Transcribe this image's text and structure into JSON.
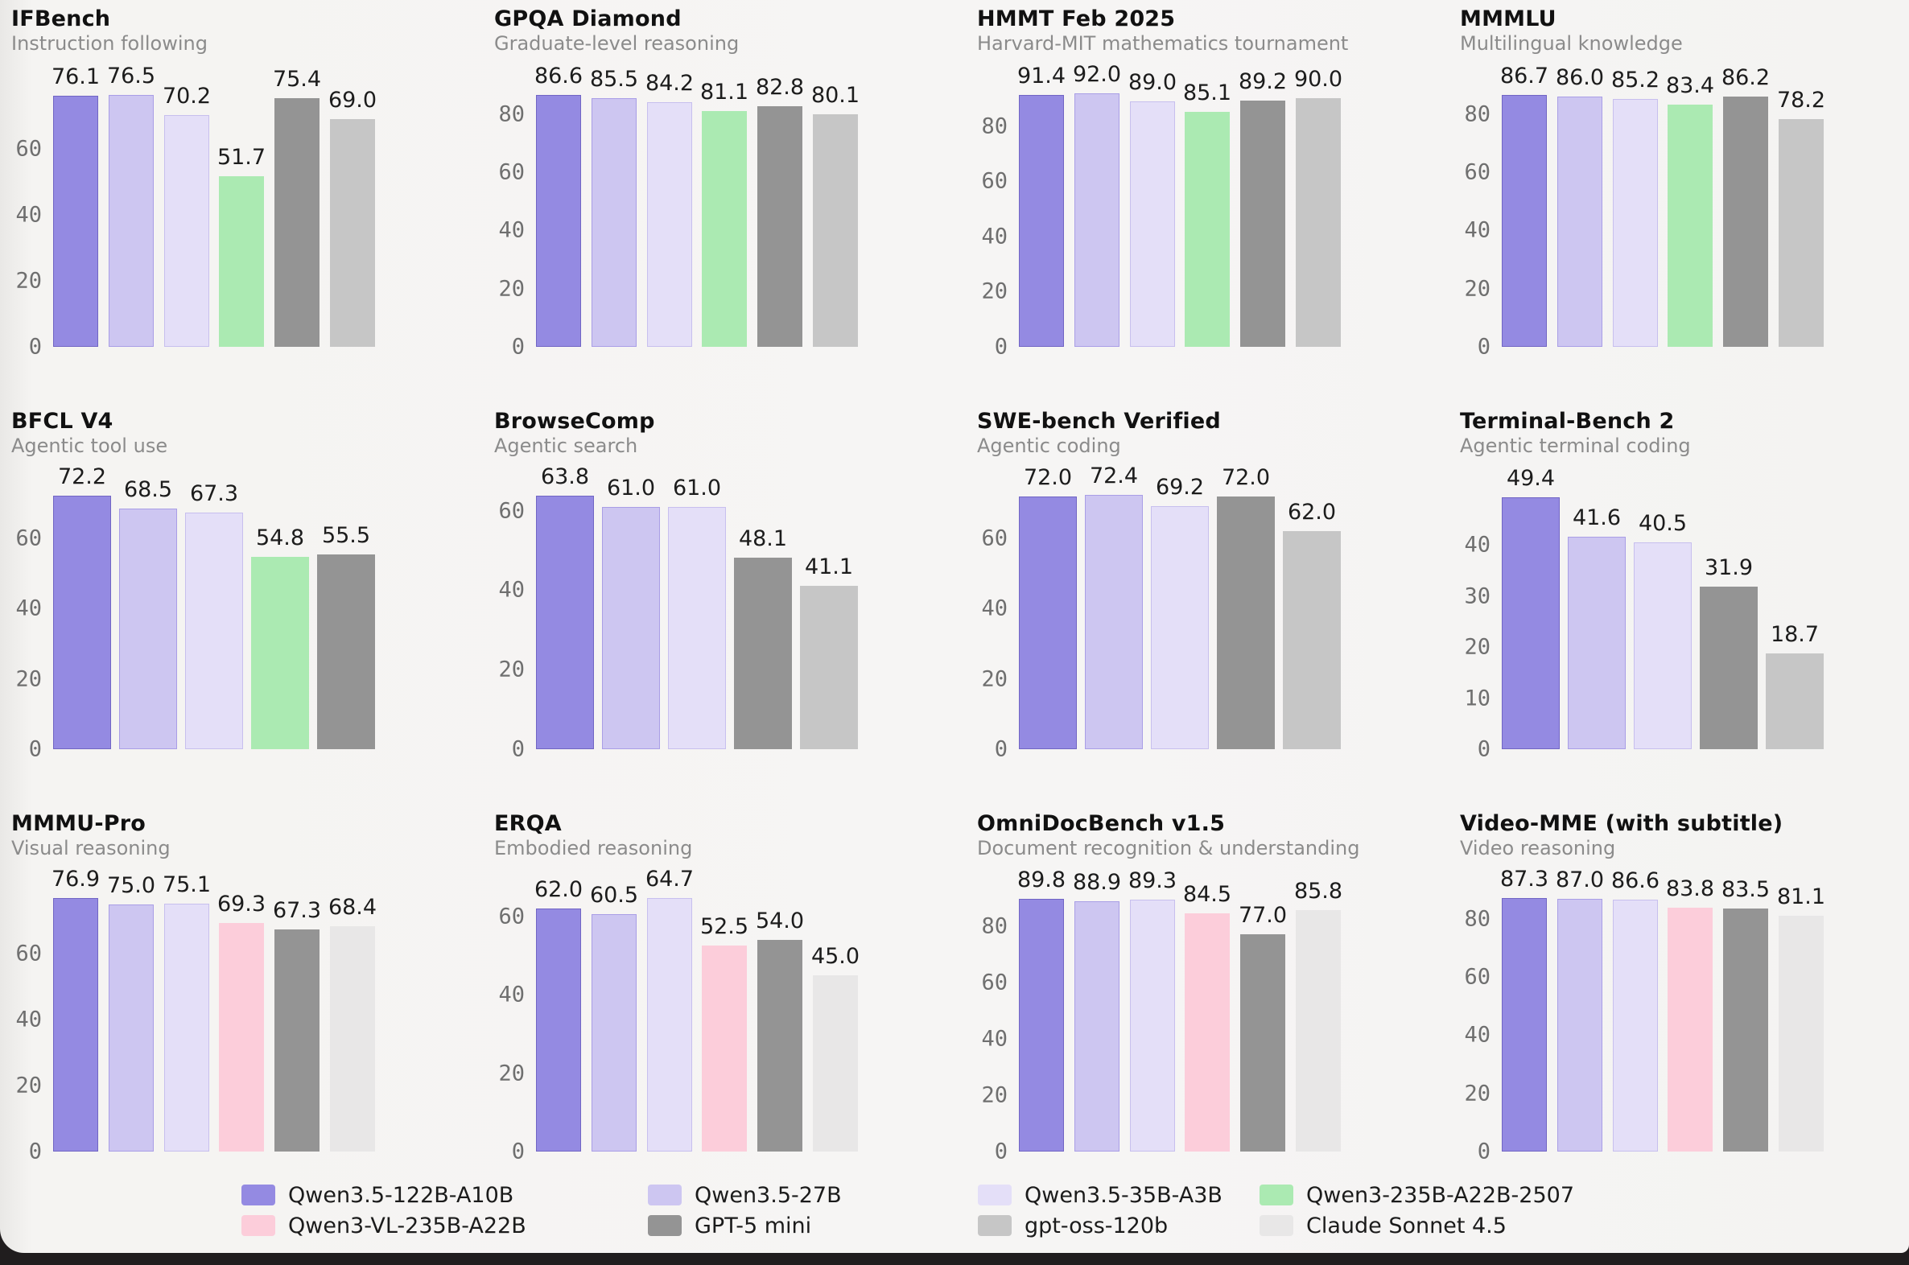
{
  "page": {
    "surface_background": "#f6f5f4",
    "bottom_bar_color": "#201d1e"
  },
  "palette": {
    "qwen35_122b": {
      "label": "Qwen3.5-122B-A10B",
      "fill": "#948ae2",
      "border": "#7165c4"
    },
    "qwen35_27b": {
      "label": "Qwen3.5-27B",
      "fill": "#cdc6f1",
      "border": "#a99ee6"
    },
    "qwen35_35b": {
      "label": "Qwen3.5-35B-A3B",
      "fill": "#e4dff8",
      "border": "#c7bfee"
    },
    "qwen3_235b": {
      "label": "Qwen3-235B-A22B-2507",
      "fill": "#abeab2",
      "border": "#abeab2"
    },
    "qwen3_vl": {
      "label": "Qwen3-VL-235B-A22B",
      "fill": "#fccdda",
      "border": "#fccdda"
    },
    "gpt5_mini": {
      "label": "GPT-5 mini",
      "fill": "#949494",
      "border": "#949494"
    },
    "gpt_oss": {
      "label": "gpt-oss-120b",
      "fill": "#c6c6c6",
      "border": "#c6c6c6"
    },
    "claude": {
      "label": "Claude Sonnet 4.5",
      "fill": "#e8e7e7",
      "border": "#e8e7e7"
    }
  },
  "legend": {
    "rows": [
      [
        "qwen35_122b",
        "qwen35_27b",
        "qwen35_35b",
        "qwen3_235b"
      ],
      [
        "qwen3_vl",
        "gpt5_mini",
        "gpt_oss",
        "claude"
      ]
    ]
  },
  "chart_data": [
    {
      "type": "bar",
      "title": "IFBench",
      "subtitle": "Instruction following",
      "categories": [
        "Qwen3.5-122B-A10B",
        "Qwen3.5-27B",
        "Qwen3.5-35B-A3B",
        "Qwen3-235B-A22B-2507",
        "GPT-5 mini",
        "gpt-oss-120b"
      ],
      "series_keys": [
        "qwen35_122b",
        "qwen35_27b",
        "qwen35_35b",
        "qwen3_235b",
        "gpt5_mini",
        "gpt_oss"
      ],
      "values": [
        76.1,
        76.5,
        70.2,
        51.7,
        75.4,
        69.0
      ],
      "yticks": [
        0,
        20,
        40,
        60
      ],
      "ylim": [
        0,
        82
      ],
      "grid": false,
      "legend_position": "bottom-figure"
    },
    {
      "type": "bar",
      "title": "GPQA Diamond",
      "subtitle": "Graduate-level reasoning",
      "categories": [
        "Qwen3.5-122B-A10B",
        "Qwen3.5-27B",
        "Qwen3.5-35B-A3B",
        "Qwen3-235B-A22B-2507",
        "GPT-5 mini",
        "gpt-oss-120b"
      ],
      "series_keys": [
        "qwen35_122b",
        "qwen35_27b",
        "qwen35_35b",
        "qwen3_235b",
        "gpt5_mini",
        "gpt_oss"
      ],
      "values": [
        86.6,
        85.5,
        84.2,
        81.1,
        82.8,
        80.1
      ],
      "yticks": [
        0,
        20,
        40,
        60,
        80
      ],
      "ylim": [
        0,
        93
      ],
      "grid": false
    },
    {
      "type": "bar",
      "title": "HMMT Feb 2025",
      "subtitle": "Harvard-MIT mathematics tournament",
      "categories": [
        "Qwen3.5-122B-A10B",
        "Qwen3.5-27B",
        "Qwen3.5-35B-A3B",
        "Qwen3-235B-A22B-2507",
        "GPT-5 mini",
        "gpt-oss-120b"
      ],
      "series_keys": [
        "qwen35_122b",
        "qwen35_27b",
        "qwen35_35b",
        "qwen3_235b",
        "gpt5_mini",
        "gpt_oss"
      ],
      "values": [
        91.4,
        92.0,
        89.0,
        85.1,
        89.2,
        90.0
      ],
      "yticks": [
        0,
        20,
        40,
        60,
        80
      ],
      "ylim": [
        0,
        98
      ],
      "grid": false
    },
    {
      "type": "bar",
      "title": "MMMLU",
      "subtitle": "Multilingual knowledge",
      "categories": [
        "Qwen3.5-122B-A10B",
        "Qwen3.5-27B",
        "Qwen3.5-35B-A3B",
        "Qwen3-235B-A22B-2507",
        "GPT-5 mini",
        "gpt-oss-120b"
      ],
      "series_keys": [
        "qwen35_122b",
        "qwen35_27b",
        "qwen35_35b",
        "qwen3_235b",
        "gpt5_mini",
        "gpt_oss"
      ],
      "values": [
        86.7,
        86.0,
        85.2,
        83.4,
        86.2,
        78.2
      ],
      "yticks": [
        0,
        20,
        40,
        60,
        80
      ],
      "ylim": [
        0,
        93
      ],
      "grid": false
    },
    {
      "type": "bar",
      "title": "BFCL V4",
      "subtitle": "Agentic tool use",
      "categories": [
        "Qwen3.5-122B-A10B",
        "Qwen3.5-27B",
        "Qwen3.5-35B-A3B",
        "Qwen3-235B-A22B-2507",
        "GPT-5 mini"
      ],
      "series_keys": [
        "qwen35_122b",
        "qwen35_27b",
        "qwen35_35b",
        "qwen3_235b",
        "gpt5_mini"
      ],
      "values": [
        72.2,
        68.5,
        67.3,
        54.8,
        55.5
      ],
      "yticks": [
        0,
        20,
        40,
        60
      ],
      "ylim": [
        0,
        77
      ],
      "grid": false
    },
    {
      "type": "bar",
      "title": "BrowseComp",
      "subtitle": "Agentic search",
      "categories": [
        "Qwen3.5-122B-A10B",
        "Qwen3.5-27B",
        "Qwen3.5-35B-A3B",
        "GPT-5 mini",
        "gpt-oss-120b"
      ],
      "series_keys": [
        "qwen35_122b",
        "qwen35_27b",
        "qwen35_35b",
        "gpt5_mini",
        "gpt_oss"
      ],
      "values": [
        63.8,
        61.0,
        61.0,
        48.1,
        41.1
      ],
      "yticks": [
        0,
        20,
        40,
        60
      ],
      "ylim": [
        0,
        68
      ],
      "grid": false
    },
    {
      "type": "bar",
      "title": "SWE-bench Verified",
      "subtitle": "Agentic coding",
      "categories": [
        "Qwen3.5-122B-A10B",
        "Qwen3.5-27B",
        "Qwen3.5-35B-A3B",
        "GPT-5 mini",
        "gpt-oss-120b"
      ],
      "series_keys": [
        "qwen35_122b",
        "qwen35_27b",
        "qwen35_35b",
        "gpt5_mini",
        "gpt_oss"
      ],
      "values": [
        72.0,
        72.4,
        69.2,
        72.0,
        62.0
      ],
      "yticks": [
        0,
        20,
        40,
        60
      ],
      "ylim": [
        0,
        77
      ],
      "grid": false
    },
    {
      "type": "bar",
      "title": "Terminal-Bench 2",
      "subtitle": "Agentic terminal coding",
      "categories": [
        "Qwen3.5-122B-A10B",
        "Qwen3.5-27B",
        "Qwen3.5-35B-A3B",
        "GPT-5 mini",
        "gpt-oss-120b"
      ],
      "series_keys": [
        "qwen35_122b",
        "qwen35_27b",
        "qwen35_35b",
        "gpt5_mini",
        "gpt_oss"
      ],
      "values": [
        49.4,
        41.6,
        40.5,
        31.9,
        18.7
      ],
      "yticks": [
        0,
        10,
        20,
        30,
        40
      ],
      "ylim": [
        0,
        53
      ],
      "grid": false
    },
    {
      "type": "bar",
      "title": "MMMU-Pro",
      "subtitle": "Visual reasoning",
      "categories": [
        "Qwen3.5-122B-A10B",
        "Qwen3.5-27B",
        "Qwen3.5-35B-A3B",
        "Qwen3-VL-235B-A22B",
        "GPT-5 mini",
        "Claude Sonnet 4.5"
      ],
      "series_keys": [
        "qwen35_122b",
        "qwen35_27b",
        "qwen35_35b",
        "qwen3_vl",
        "gpt5_mini",
        "claude"
      ],
      "values": [
        76.9,
        75.0,
        75.1,
        69.3,
        67.3,
        68.4
      ],
      "yticks": [
        0,
        20,
        40,
        60
      ],
      "ylim": [
        0,
        82
      ],
      "grid": false
    },
    {
      "type": "bar",
      "title": "ERQA",
      "subtitle": "Embodied reasoning",
      "categories": [
        "Qwen3.5-122B-A10B",
        "Qwen3.5-27B",
        "Qwen3.5-35B-A3B",
        "Qwen3-VL-235B-A22B",
        "GPT-5 mini",
        "Claude Sonnet 4.5"
      ],
      "series_keys": [
        "qwen35_122b",
        "qwen35_27b",
        "qwen35_35b",
        "qwen3_vl",
        "gpt5_mini",
        "claude"
      ],
      "values": [
        62.0,
        60.5,
        64.7,
        52.5,
        54.0,
        45.0
      ],
      "yticks": [
        0,
        20,
        40,
        60
      ],
      "ylim": [
        0,
        69
      ],
      "grid": false
    },
    {
      "type": "bar",
      "title": "OmniDocBench v1.5",
      "subtitle": "Document recognition & understanding",
      "categories": [
        "Qwen3.5-122B-A10B",
        "Qwen3.5-27B",
        "Qwen3.5-35B-A3B",
        "Qwen3-VL-235B-A22B",
        "GPT-5 mini",
        "Claude Sonnet 4.5"
      ],
      "series_keys": [
        "qwen35_122b",
        "qwen35_27b",
        "qwen35_35b",
        "qwen3_vl",
        "gpt5_mini",
        "claude"
      ],
      "values": [
        89.8,
        88.9,
        89.3,
        84.5,
        77.0,
        85.8
      ],
      "yticks": [
        0,
        20,
        40,
        60,
        80
      ],
      "ylim": [
        0,
        96
      ],
      "grid": false
    },
    {
      "type": "bar",
      "title": "Video-MME (with subtitle)",
      "subtitle": "Video reasoning",
      "categories": [
        "Qwen3.5-122B-A10B",
        "Qwen3.5-27B",
        "Qwen3.5-35B-A3B",
        "Qwen3-VL-235B-A22B",
        "GPT-5 mini",
        "Claude Sonnet 4.5"
      ],
      "series_keys": [
        "qwen35_122b",
        "qwen35_27b",
        "qwen35_35b",
        "qwen3_vl",
        "gpt5_mini",
        "claude"
      ],
      "values": [
        87.3,
        87.0,
        86.6,
        83.8,
        83.5,
        81.1
      ],
      "yticks": [
        0,
        20,
        40,
        60,
        80
      ],
      "ylim": [
        0,
        93
      ],
      "grid": false
    }
  ]
}
